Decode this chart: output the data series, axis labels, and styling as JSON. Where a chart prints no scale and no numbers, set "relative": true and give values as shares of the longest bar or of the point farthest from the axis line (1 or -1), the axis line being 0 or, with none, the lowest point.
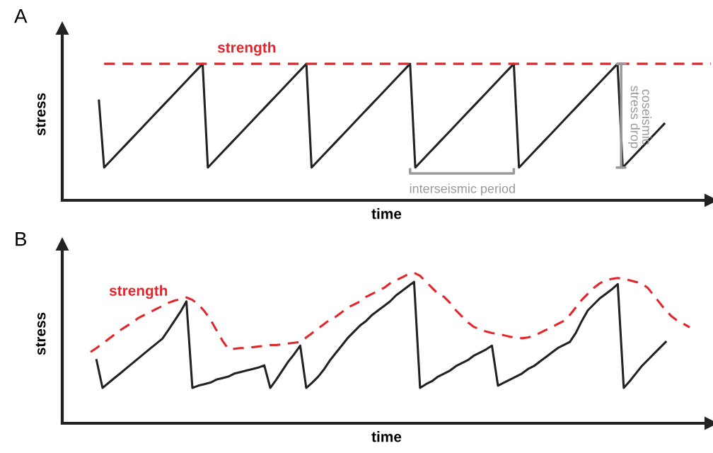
{
  "chart_data": [
    {
      "type": "line",
      "title": "A",
      "xlabel": "time",
      "ylabel": "stress",
      "relative": true,
      "legend": false,
      "grid": false,
      "tick_labels": false,
      "annotations": [
        "interseismic period",
        "coseismic\nstress drop"
      ],
      "categories": [
        null,
        null,
        null,
        null,
        null,
        null,
        null,
        null,
        null,
        null,
        null,
        null,
        null,
        null,
        null,
        null,
        null,
        null,
        null,
        null,
        null,
        null,
        null,
        null,
        null,
        null,
        null,
        null,
        null,
        null,
        null,
        null,
        null,
        null,
        null,
        null,
        null,
        null,
        null,
        null,
        null,
        null,
        null,
        null,
        null,
        null,
        null,
        null,
        null,
        null,
        null,
        null,
        null,
        null,
        null,
        null,
        null,
        null,
        null,
        null,
        null,
        null,
        null,
        null,
        null,
        null,
        null,
        null,
        null,
        null,
        null,
        null,
        null,
        null,
        null,
        null,
        null,
        null,
        null,
        null,
        null,
        null,
        null,
        null,
        null,
        null,
        null,
        null,
        null,
        null,
        null,
        null,
        null,
        null,
        null,
        null,
        null,
        null,
        null,
        null,
        null,
        null,
        null,
        null,
        null,
        null,
        null,
        null,
        null,
        null,
        null,
        null,
        null,
        null,
        null,
        null,
        null,
        null,
        null
      ],
      "series": [
        {
          "color": "#222222",
          "line_style": "solid",
          "values": [
            0.73,
            0.24,
            0.28,
            0.32,
            0.36,
            0.4,
            0.44,
            0.48,
            0.52,
            0.56,
            0.6,
            0.64,
            0.68,
            0.72,
            0.76,
            0.8,
            0.84,
            0.88,
            0.92,
            0.96,
            1,
            0.24,
            0.28,
            0.32,
            0.36,
            0.4,
            0.44,
            0.48,
            0.52,
            0.56,
            0.6,
            0.64,
            0.68,
            0.72,
            0.76,
            0.8,
            0.84,
            0.88,
            0.92,
            0.96,
            1,
            0.24,
            0.28,
            0.32,
            0.36,
            0.4,
            0.44,
            0.48,
            0.52,
            0.56,
            0.6,
            0.64,
            0.68,
            0.72,
            0.76,
            0.8,
            0.84,
            0.88,
            0.92,
            0.96,
            1,
            0.24,
            0.28,
            0.32,
            0.36,
            0.4,
            0.44,
            0.48,
            0.52,
            0.56,
            0.6,
            0.64,
            0.68,
            0.72,
            0.76,
            0.8,
            0.84,
            0.88,
            0.92,
            0.96,
            1,
            0.24,
            0.28,
            0.32,
            0.36,
            0.4,
            0.44,
            0.48,
            0.52,
            0.56,
            0.6,
            0.64,
            0.68,
            0.72,
            0.76,
            0.8,
            0.84,
            0.88,
            0.92,
            0.96,
            1,
            0.24,
            0.28,
            0.32,
            0.36,
            0.4,
            0.44,
            0.48,
            0.52,
            0.56,
            null,
            null,
            null,
            null,
            null,
            null,
            null,
            null,
            null
          ]
        },
        {
          "name": "strength",
          "color": "#e3262b",
          "line_style": "dashed",
          "values": [
            null,
            1,
            1,
            1,
            1,
            1,
            1,
            1,
            1,
            1,
            1,
            1,
            1,
            1,
            1,
            1,
            1,
            1,
            1,
            1,
            1,
            1,
            1,
            1,
            1,
            1,
            1,
            1,
            1,
            1,
            1,
            1,
            1,
            1,
            1,
            1,
            1,
            1,
            1,
            1,
            1,
            1,
            1,
            1,
            1,
            1,
            1,
            1,
            1,
            1,
            1,
            1,
            1,
            1,
            1,
            1,
            1,
            1,
            1,
            1,
            1,
            1,
            1,
            1,
            1,
            1,
            1,
            1,
            1,
            1,
            1,
            1,
            1,
            1,
            1,
            1,
            1,
            1,
            1,
            1,
            1,
            1,
            1,
            1,
            1,
            1,
            1,
            1,
            1,
            1,
            1,
            1,
            1,
            1,
            1,
            1,
            1,
            1,
            1,
            1,
            1,
            1,
            1,
            1,
            1,
            1,
            1,
            1,
            1,
            1,
            1,
            1,
            1,
            1,
            1,
            1,
            1,
            1,
            1
          ]
        }
      ]
    },
    {
      "type": "line",
      "title": "B",
      "xlabel": "time",
      "ylabel": "stress",
      "relative": true,
      "legend": false,
      "grid": false,
      "tick_labels": false,
      "categories": [
        null,
        null,
        null,
        null,
        null,
        null,
        null,
        null,
        null,
        null,
        null,
        null,
        null,
        null,
        null,
        null,
        null,
        null,
        null,
        null,
        null,
        null,
        null,
        null,
        null,
        null,
        null,
        null,
        null,
        null,
        null,
        null,
        null,
        null,
        null,
        null,
        null,
        null,
        null,
        null,
        null,
        null,
        null,
        null,
        null,
        null,
        null,
        null,
        null,
        null,
        null,
        null,
        null,
        null,
        null,
        null,
        null,
        null,
        null,
        null,
        null,
        null,
        null,
        null,
        null,
        null,
        null,
        null,
        null,
        null,
        null,
        null,
        null,
        null,
        null,
        null,
        null,
        null,
        null,
        null,
        null,
        null,
        null,
        null,
        null,
        null,
        null,
        null,
        null,
        null,
        null,
        null,
        null,
        null,
        null,
        null,
        null,
        null,
        null,
        null,
        null
      ],
      "series": [
        {
          "color": "#222222",
          "line_style": "solid",
          "values": [
            null,
            0.42,
            0.235,
            0.268,
            0.301,
            0.333,
            0.366,
            0.399,
            0.432,
            0.465,
            0.498,
            0.53,
            0.563,
            0.62,
            0.68,
            0.74,
            0.81,
            0.235,
            0.25,
            0.26,
            0.27,
            0.29,
            0.3,
            0.31,
            0.33,
            0.34,
            0.35,
            0.36,
            0.37,
            0.385,
            0.235,
            0.29,
            0.35,
            0.41,
            0.46,
            0.516,
            0.235,
            0.27,
            0.31,
            0.36,
            0.42,
            0.47,
            0.52,
            0.57,
            0.61,
            0.65,
            0.68,
            0.72,
            0.75,
            0.78,
            0.81,
            0.85,
            0.88,
            0.91,
            0.94,
            0.235,
            0.26,
            0.28,
            0.31,
            0.33,
            0.35,
            0.38,
            0.4,
            0.42,
            0.45,
            0.47,
            0.49,
            0.516,
            0.25,
            0.27,
            0.29,
            0.31,
            0.33,
            0.36,
            0.38,
            0.41,
            0.44,
            0.47,
            0.5,
            0.52,
            0.54,
            0.6,
            0.68,
            0.75,
            0.79,
            0.83,
            0.86,
            0.89,
            0.925,
            0.235,
            0.28,
            0.33,
            0.38,
            0.42,
            0.46,
            0.5,
            0.54,
            null,
            null,
            null,
            null
          ]
        },
        {
          "name": "strength",
          "color": "#e3262b",
          "line_style": "dashed",
          "values": [
            0.474,
            0.5,
            0.53,
            0.56,
            0.59,
            0.62,
            0.645,
            0.67,
            0.7,
            0.72,
            0.74,
            0.76,
            0.78,
            0.8,
            0.815,
            0.825,
            0.836,
            0.82,
            0.79,
            0.745,
            0.69,
            0.62,
            0.55,
            0.493,
            0.495,
            0.5,
            0.5,
            0.505,
            0.51,
            0.515,
            0.52,
            0.52,
            0.525,
            0.53,
            0.535,
            0.54,
            0.57,
            0.6,
            0.63,
            0.66,
            0.69,
            0.71,
            0.74,
            0.77,
            0.79,
            0.81,
            0.84,
            0.86,
            0.88,
            0.9,
            0.93,
            0.95,
            0.97,
            0.99,
            1,
            0.98,
            0.94,
            0.9,
            0.86,
            0.84,
            0.8,
            0.75,
            0.71,
            0.67,
            0.64,
            0.625,
            0.61,
            0.6,
            0.595,
            0.585,
            0.575,
            0.57,
            0.565,
            0.57,
            0.58,
            0.6,
            0.62,
            0.64,
            0.66,
            0.68,
            0.72,
            0.77,
            0.82,
            0.86,
            0.9,
            0.93,
            0.95,
            0.96,
            0.965,
            0.96,
            0.95,
            0.94,
            0.93,
            0.9,
            0.85,
            0.8,
            0.75,
            0.71,
            0.68,
            0.66,
            0.638
          ]
        }
      ]
    }
  ]
}
